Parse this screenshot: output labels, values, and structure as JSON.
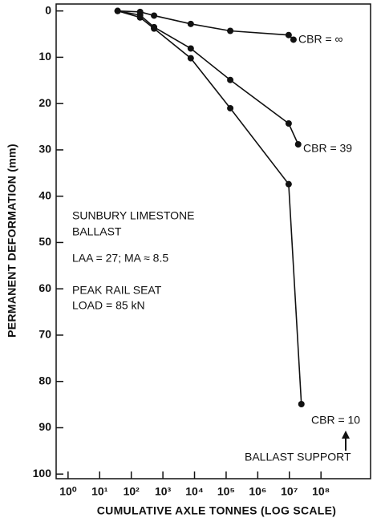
{
  "chart_data": {
    "type": "line",
    "x_label": "CUMULATIVE AXLE TONNES (LOG SCALE)",
    "y_label": "PERMANENT DEFORMATION (mm)",
    "x_log": true,
    "y_inverted": true,
    "xlim": [
      0.42,
      3700000000
    ],
    "ylim": [
      -1.5,
      101
    ],
    "xticks": [
      {
        "value": 1,
        "label": "10⁰"
      },
      {
        "value": 10,
        "label": "10¹"
      },
      {
        "value": 100,
        "label": "10²"
      },
      {
        "value": 1000,
        "label": "10³"
      },
      {
        "value": 10000,
        "label": "10⁴"
      },
      {
        "value": 100000,
        "label": "10⁵"
      },
      {
        "value": 1000000,
        "label": "10⁶"
      },
      {
        "value": 10000000,
        "label": "10⁷"
      },
      {
        "value": 100000000,
        "label": "10⁸"
      }
    ],
    "yticks": [
      0,
      10,
      20,
      30,
      40,
      50,
      60,
      70,
      80,
      90,
      100
    ],
    "color": "#111111",
    "series": [
      {
        "name": "CBR = ∞",
        "x": [
          37,
          190,
          525,
          7600,
          135000,
          9500000,
          13500000
        ],
        "values": [
          0,
          0.2,
          1,
          2.8,
          4.3,
          5.2,
          6.2
        ]
      },
      {
        "name": "CBR = 39",
        "x": [
          37,
          190,
          525,
          7600,
          135000,
          9500000,
          19000000
        ],
        "values": [
          0,
          0.9,
          3.5,
          8.1,
          14.9,
          24.3,
          28.8
        ]
      },
      {
        "name": "CBR = 10",
        "x": [
          37,
          190,
          525,
          7600,
          135000,
          9500000,
          24000000
        ],
        "values": [
          0,
          1.4,
          3.8,
          10.2,
          21,
          37.4,
          84.9
        ]
      }
    ],
    "annotations": [
      "SUNBURY LIMESTONE",
      "BALLAST",
      "LAA = 27; MA ≈ 8.5",
      "PEAK RAIL SEAT",
      "LOAD = 85 kN",
      "BALLAST SUPPORT"
    ]
  }
}
